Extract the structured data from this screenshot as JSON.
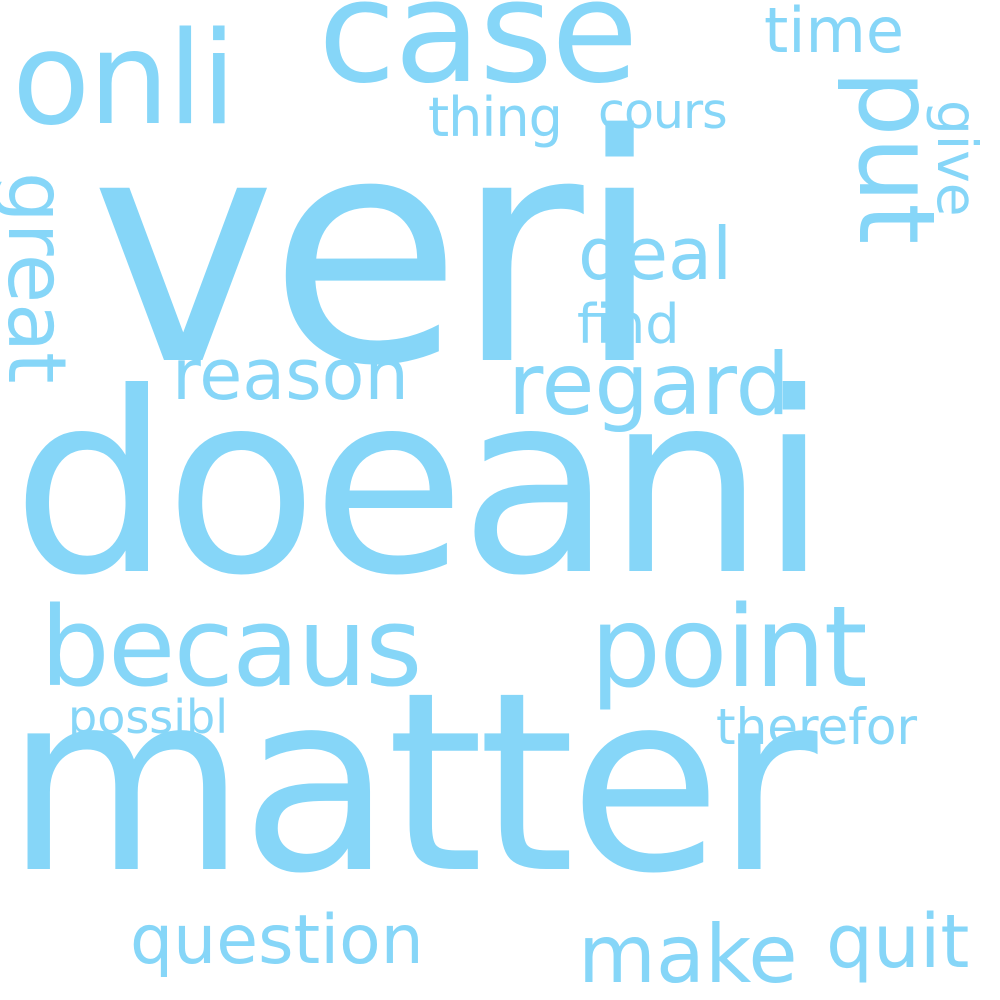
{
  "colors": {
    "background": "#ffffff",
    "word": "#86d6f8"
  },
  "words": {
    "veri": "veri",
    "doeani": "doeani",
    "matter": "matter",
    "case": "case",
    "onli": "onli",
    "put": "put",
    "time": "time",
    "thing": "thing",
    "cours": "cours",
    "give": "give",
    "great": "great",
    "deal": "deal",
    "find": "find",
    "reason": "reason",
    "regard": "regard",
    "becaus": "becaus",
    "point": "point",
    "possibl": "possibl",
    "therefor": "therefor",
    "question": "question",
    "make": "make",
    "quit": "quit"
  }
}
